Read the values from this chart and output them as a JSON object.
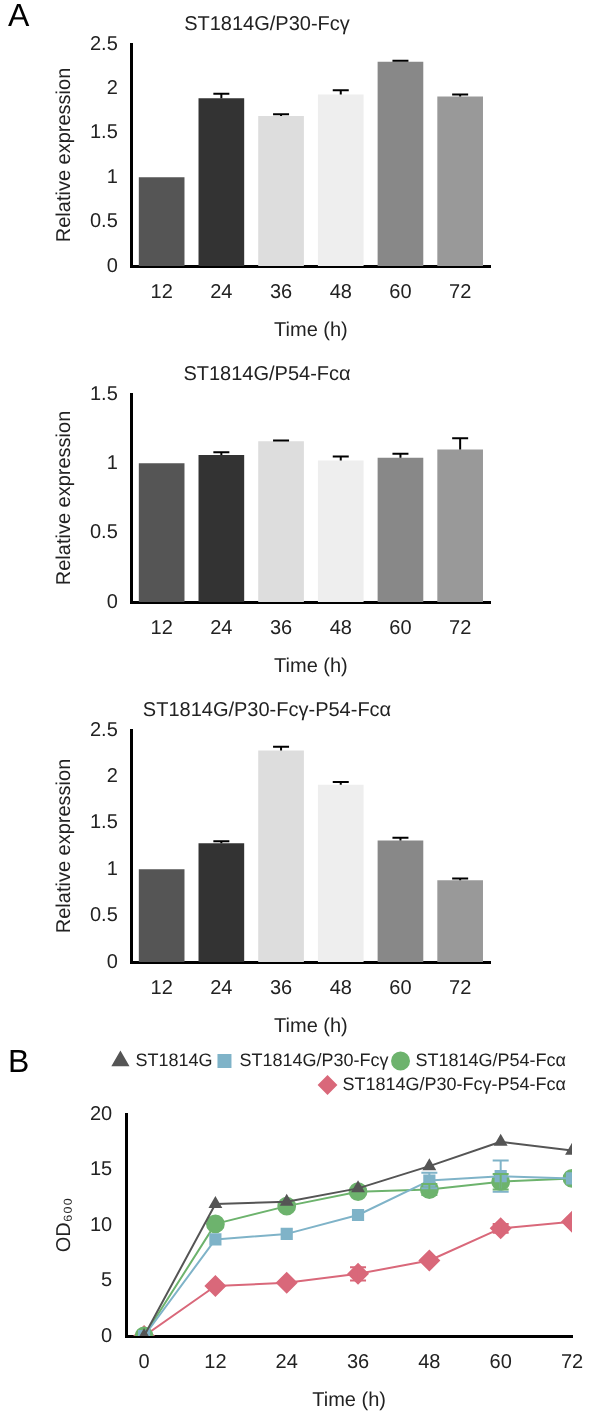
{
  "chart_data": [
    {
      "type": "bar",
      "title": "ST1814G/P30-Fcγ",
      "xlabel": "Time (h)",
      "ylabel": "Relative expression",
      "annotations": [
        "A"
      ],
      "categories": [
        "12",
        "24",
        "36",
        "48",
        "60",
        "72"
      ],
      "values": [
        1.0,
        1.89,
        1.69,
        1.93,
        2.3,
        1.91
      ],
      "errors": [
        null,
        [
          1.89,
          1.94
        ],
        [
          1.69,
          1.71
        ],
        [
          1.93,
          1.98
        ],
        [
          2.3,
          2.31
        ],
        [
          1.91,
          1.93
        ]
      ],
      "colors": [
        "#555555",
        "#333333",
        "#dddddd",
        "#eeeeee",
        "#888888",
        "#999999"
      ],
      "ylim": [
        0,
        2.5
      ],
      "yticks": [
        0,
        0.5,
        1.0,
        1.5,
        2.0,
        2.5
      ],
      "grid": false,
      "legend": false
    },
    {
      "type": "bar",
      "title": "ST1814G/P54-Fcα",
      "xlabel": "Time (h)",
      "ylabel": "Relative expression",
      "categories": [
        "12",
        "24",
        "36",
        "48",
        "60",
        "72"
      ],
      "values": [
        1.0,
        1.06,
        1.16,
        1.02,
        1.04,
        1.1
      ],
      "errors": [
        null,
        [
          1.06,
          1.08
        ],
        [
          1.16,
          1.165
        ],
        [
          1.02,
          1.05
        ],
        [
          1.04,
          1.07
        ],
        [
          1.1,
          1.18
        ]
      ],
      "colors": [
        "#555555",
        "#333333",
        "#dddddd",
        "#eeeeee",
        "#888888",
        "#999999"
      ],
      "ylim": [
        0,
        1.5
      ],
      "yticks": [
        0,
        0.5,
        1.0,
        1.5
      ],
      "grid": false,
      "legend": false
    },
    {
      "type": "bar",
      "title": "ST1814G/P30-Fcγ-P54-Fcα",
      "xlabel": "Time (h)",
      "ylabel": "Relative expression",
      "categories": [
        "12",
        "24",
        "36",
        "48",
        "60",
        "72"
      ],
      "values": [
        1.0,
        1.28,
        2.28,
        1.91,
        1.31,
        0.88
      ],
      "errors": [
        null,
        [
          1.28,
          1.3
        ],
        [
          2.28,
          2.32
        ],
        [
          1.91,
          1.94
        ],
        [
          1.31,
          1.34
        ],
        [
          0.88,
          0.9
        ]
      ],
      "colors": [
        "#555555",
        "#333333",
        "#dddddd",
        "#eeeeee",
        "#888888",
        "#999999"
      ],
      "ylim": [
        0,
        2.5
      ],
      "yticks": [
        0,
        0.5,
        1.0,
        1.5,
        2.0,
        2.5
      ],
      "grid": false,
      "legend": false
    },
    {
      "type": "line",
      "xlabel": "Time (h)",
      "ylabel": "OD₆₀₀",
      "annotations": [
        "B"
      ],
      "x": [
        0,
        12,
        24,
        36,
        48,
        60,
        72
      ],
      "xlim": [
        -3,
        72
      ],
      "xticks": [
        0,
        12,
        24,
        36,
        48,
        60,
        72
      ],
      "ylim": [
        0,
        20
      ],
      "yticks": [
        0,
        5,
        10,
        15,
        20
      ],
      "grid": false,
      "legend": "top right",
      "series": [
        {
          "name": "ST1814G",
          "color": "#555555",
          "marker": "triangle",
          "values": [
            0,
            11.9,
            12.1,
            13.3,
            15.3,
            17.5,
            16.7
          ]
        },
        {
          "name": "ST1814G/P30-Fcγ",
          "color": "#7fb3c8",
          "marker": "square",
          "values": [
            0,
            8.7,
            9.2,
            10.9,
            14.0,
            14.4,
            14.2
          ],
          "errors": [
            null,
            null,
            null,
            null,
            0.7,
            1.4,
            null
          ]
        },
        {
          "name": "ST1814G/P54-Fcα",
          "color": "#6db36d",
          "marker": "circle",
          "values": [
            0,
            10.1,
            11.7,
            13.0,
            13.2,
            13.9,
            14.2
          ],
          "errors": [
            null,
            null,
            null,
            null,
            0.5,
            0.7,
            null
          ]
        },
        {
          "name": "ST1814G/P30-Fcγ-P54-Fcα",
          "color": "#d9687a",
          "marker": "diamond",
          "values": [
            0,
            4.5,
            4.8,
            5.6,
            6.8,
            9.7,
            10.3
          ],
          "errors": [
            null,
            null,
            null,
            0.6,
            null,
            0.4,
            null
          ]
        }
      ]
    }
  ]
}
